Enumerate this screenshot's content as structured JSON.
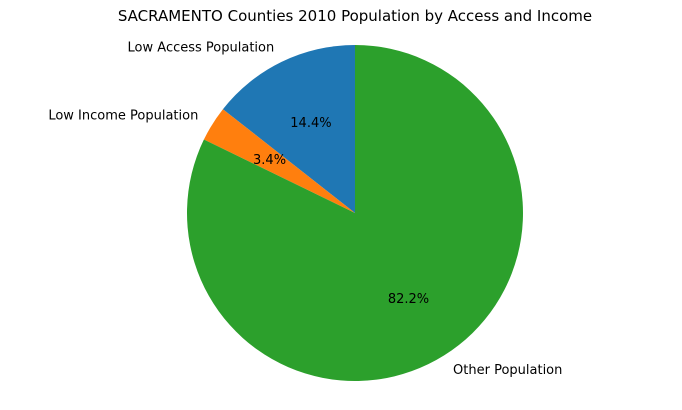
{
  "chart_data": {
    "type": "pie",
    "title": "SACRAMENTO Counties 2010 Population by Access and Income",
    "start_angle_deg": 90,
    "direction": "counterclockwise",
    "slices": [
      {
        "label": "Low Access Population",
        "value": 14.4,
        "pct_label": "14.4%",
        "color": "#1f77b4"
      },
      {
        "label": "Low Income Population",
        "value": 3.4,
        "pct_label": "3.4%",
        "color": "#ff7f0e"
      },
      {
        "label": "Other Population",
        "value": 82.2,
        "pct_label": "82.2%",
        "color": "#2ca02c"
      }
    ]
  }
}
